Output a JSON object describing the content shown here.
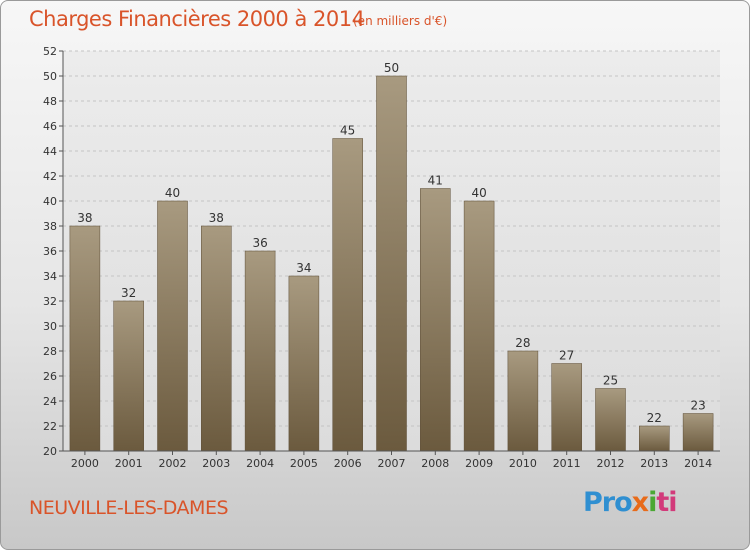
{
  "header": {
    "title": "Charges Financières 2000 à 2014",
    "unit": "(en milliers d'€)"
  },
  "footer": {
    "commune": "NEUVILLE-LES-DAMES",
    "logo_parts": [
      "Pro",
      "x",
      "i",
      "ti"
    ]
  },
  "colors": {
    "accent": "#d9542a",
    "bar_top": "#a89a80",
    "bar_bottom": "#6b5a3e"
  },
  "chart_data": {
    "type": "bar",
    "title": "Charges Financières 2000 à 2014",
    "subtitle": "(en milliers d'€)",
    "categories": [
      "2000",
      "2001",
      "2002",
      "2003",
      "2004",
      "2005",
      "2006",
      "2007",
      "2008",
      "2009",
      "2010",
      "2011",
      "2012",
      "2013",
      "2014"
    ],
    "values": [
      38,
      32,
      40,
      38,
      36,
      34,
      45,
      50,
      41,
      40,
      28,
      27,
      25,
      22,
      23
    ],
    "ylim": [
      20,
      52
    ],
    "yticks": [
      20,
      22,
      24,
      26,
      28,
      30,
      32,
      34,
      36,
      38,
      40,
      42,
      44,
      46,
      48,
      50,
      52
    ],
    "grid": true,
    "legend": "none"
  }
}
